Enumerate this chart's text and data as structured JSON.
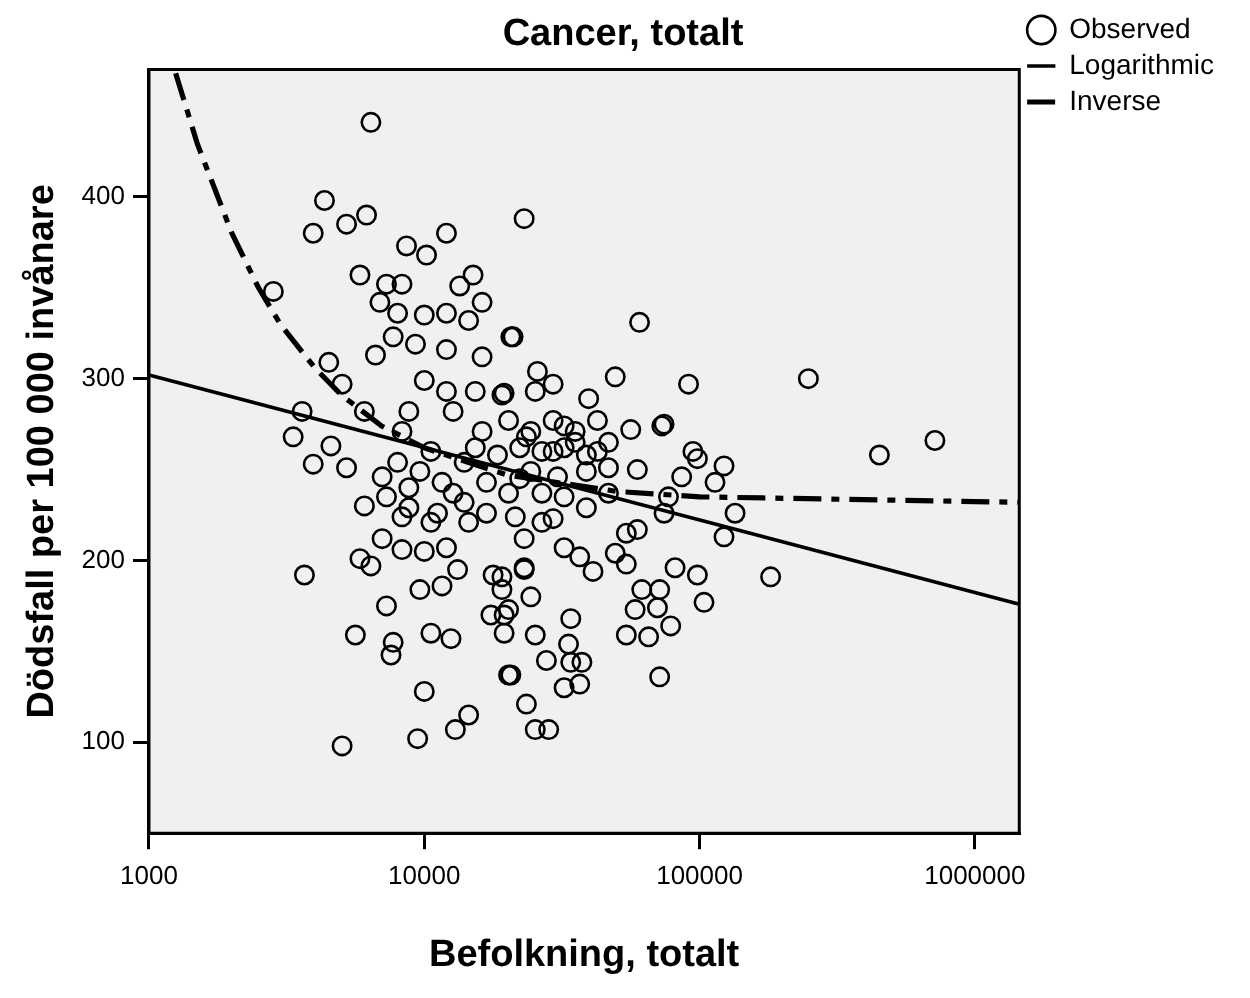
{
  "chart_data": {
    "type": "scatter",
    "title": "Cancer, totalt",
    "xlabel": "Befolkning, totalt",
    "ylabel": "Dödsfall per 100 000 invånare",
    "log": "x",
    "xlim": [
      1000,
      1450000
    ],
    "xticks": [
      1000,
      10000,
      100000,
      1000000
    ],
    "ylim": [
      50,
      470
    ],
    "yticks": [
      100,
      200,
      300,
      400
    ],
    "grid": false,
    "legend": "top right",
    "series": [
      {
        "name": "Observed",
        "marker": "circle",
        "color": "#000000",
        "x": [
          6400,
          4340,
          3950,
          5220,
          6170,
          12040,
          23060,
          8620,
          10190,
          5840,
          2830,
          7290,
          8300,
          13450,
          15040,
          6900,
          16220,
          8000,
          10000,
          12040,
          14490,
          21020,
          7710,
          9290,
          12040,
          16220,
          6650,
          4500,
          5030,
          10000,
          12040,
          15320,
          19150,
          25300,
          3600,
          6060,
          8790,
          12730,
          3340,
          4580,
          8300,
          16220,
          23500,
          60540,
          20630,
          25770,
          49400,
          91200,
          248500,
          39540,
          19500,
          29380,
          74310,
          56230,
          32210,
          716000,
          94600,
          450000,
          72960,
          98200,
          122700,
          86100,
          113800,
          59430,
          46670,
          38800,
          30480,
          22220,
          77100,
          134600,
          122700,
          181200,
          74310,
          54200,
          59430,
          21410,
          29380,
          23060,
          32210,
          36700,
          41020,
          49400,
          54200,
          81470,
          98200,
          23060,
          19150,
          24380,
          61680,
          71620,
          58340,
          70310,
          103800,
          34050,
          19500,
          25300,
          78540,
          54200,
          65310,
          33420,
          27780,
          34050,
          37380,
          20630,
          32210,
          36700,
          71620,
          23500,
          28310,
          19150,
          3950,
          5220,
          7290,
          6060,
          8300,
          11170,
          14490,
          7030,
          8300,
          5840,
          6400,
          10000,
          12040,
          13210,
          17780,
          23060,
          3670,
          9640,
          11600,
          7290,
          17460,
          20240,
          5620,
          10570,
          12500,
          19500,
          7710,
          7570,
          20240,
          10000,
          14490,
          12970,
          9460,
          5030,
          25300,
          9640,
          11600,
          13960,
          16830,
          10570,
          8000,
          15320,
          18450,
          12730,
          8790,
          7030,
          20240,
          16830,
          13960,
          10570,
          8790,
          26750,
          24380,
          29380,
          35330,
          42560,
          46670,
          38800,
          32210,
          26750,
          20240,
          24380,
          29380,
          35330,
          42560,
          22220,
          26750,
          32210,
          38800,
          46670
        ],
        "values": [
          441,
          398,
          380,
          385,
          390,
          380,
          388,
          373,
          368,
          357,
          348,
          352,
          352,
          351,
          357,
          342,
          342,
          336,
          335,
          336,
          332,
          323,
          323,
          319,
          316,
          312,
          313,
          309,
          297,
          299,
          293,
          293,
          291,
          293,
          282,
          282,
          282,
          282,
          268,
          263,
          271,
          271,
          268,
          331,
          323,
          304,
          301,
          297,
          300,
          289,
          292,
          297,
          275,
          272,
          274,
          266,
          260,
          258,
          274,
          256,
          252,
          246,
          243,
          250,
          251,
          249,
          246,
          245,
          235,
          226,
          213,
          191,
          226,
          215,
          217,
          224,
          223,
          212,
          207,
          202,
          194,
          204,
          198,
          196,
          192,
          195,
          191,
          180,
          184,
          184,
          173,
          174,
          177,
          168,
          170,
          159,
          164,
          159,
          158,
          154,
          145,
          144,
          144,
          137,
          130,
          132,
          136,
          121,
          107,
          184,
          253,
          251,
          235,
          230,
          224,
          226,
          221,
          212,
          206,
          201,
          197,
          205,
          207,
          195,
          192,
          196,
          192,
          184,
          186,
          175,
          170,
          173,
          159,
          160,
          157,
          160,
          155,
          148,
          137,
          128,
          115,
          107,
          102,
          98,
          107,
          249,
          243,
          254,
          243,
          260,
          254,
          262,
          258,
          237,
          240,
          246,
          237,
          226,
          232,
          221,
          229,
          237,
          249,
          260,
          265,
          260,
          237,
          229,
          235,
          221,
          277,
          271,
          277,
          271,
          277,
          262,
          260,
          262,
          258,
          265
        ]
      },
      {
        "name": "Logarithmic",
        "type": "line",
        "color": "#000000",
        "x": [
          1000,
          1450000
        ],
        "values": [
          302,
          176
        ]
      },
      {
        "name": "Inverse",
        "type": "line",
        "color": "#000000",
        "line_style": "dashed",
        "x": [
          1250,
          1500,
          2000,
          2500,
          3000,
          4000,
          5000,
          7000,
          10000,
          20000,
          50000,
          100000,
          1450000
        ],
        "values": [
          468,
          429,
          380,
          350,
          330,
          306,
          291,
          274,
          262,
          247,
          238,
          235,
          232
        ]
      }
    ]
  }
}
